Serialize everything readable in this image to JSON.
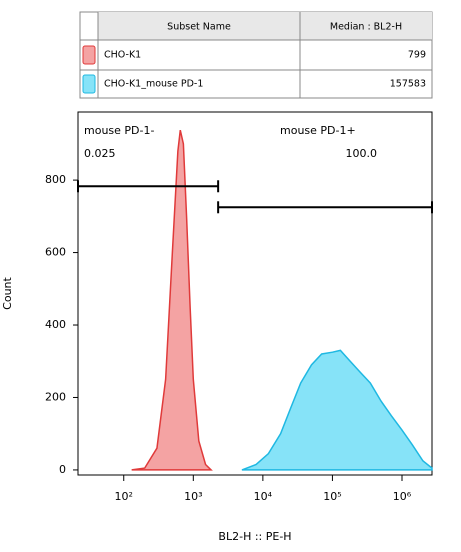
{
  "chart_data": {
    "type": "area",
    "xscale": "log",
    "xlabel": "BL2-H :: PE-H",
    "ylabel": "Count",
    "xlim": [
      22,
      2700000
    ],
    "ylim": [
      -14,
      988
    ],
    "xticks": [
      {
        "value": 100,
        "label": "10²"
      },
      {
        "value": 1000,
        "label": "10³"
      },
      {
        "value": 10000,
        "label": "10⁴"
      },
      {
        "value": 100000,
        "label": "10⁵"
      },
      {
        "value": 1000000,
        "label": "10⁶"
      }
    ],
    "yticks": [
      0,
      200,
      400,
      600,
      800
    ],
    "series": [
      {
        "name": "CHO-K1",
        "color": "#f4a3a3",
        "stroke": "#e03a3a",
        "x": [
          130,
          200,
          300,
          400,
          500,
          600,
          650,
          720,
          800,
          900,
          1000,
          1200,
          1500,
          1800
        ],
        "values": [
          0,
          5,
          60,
          250,
          600,
          880,
          938,
          900,
          700,
          450,
          250,
          80,
          15,
          0
        ]
      },
      {
        "name": "CHO-K1_mouse PD-1",
        "color": "#86e3f8",
        "stroke": "#1fb8e2",
        "x": [
          5000,
          8000,
          12000,
          18000,
          25000,
          35000,
          50000,
          70000,
          100000,
          130000,
          180000,
          250000,
          350000,
          500000,
          700000,
          1000000,
          1400000,
          2000000,
          2700000
        ],
        "values": [
          0,
          15,
          45,
          100,
          170,
          240,
          290,
          320,
          325,
          330,
          300,
          270,
          240,
          190,
          150,
          110,
          70,
          25,
          5
        ]
      }
    ],
    "gates": [
      {
        "name": "mouse PD-1-",
        "range": [
          22,
          2275
        ],
        "y": 783,
        "value": 0.025,
        "value_label": "0.025"
      },
      {
        "name": "mouse PD-1+",
        "range": [
          2275,
          2700000
        ],
        "y": 725,
        "value": 100,
        "value_label": "100.0"
      }
    ]
  },
  "table": {
    "headers": [
      "Subset Name",
      "Median : BL2-H"
    ],
    "medians": [
      799,
      157583
    ]
  }
}
